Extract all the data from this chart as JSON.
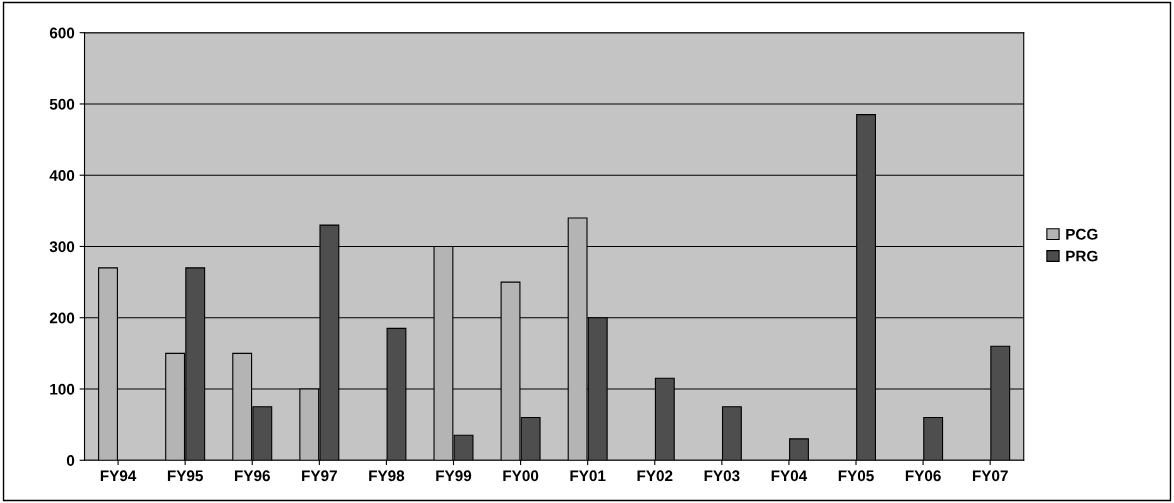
{
  "chart_data": {
    "type": "bar",
    "categories": [
      "FY94",
      "FY95",
      "FY96",
      "FY97",
      "FY98",
      "FY99",
      "FY00",
      "FY01",
      "FY02",
      "FY03",
      "FY04",
      "FY05",
      "FY06",
      "FY07"
    ],
    "series": [
      {
        "name": "PCG",
        "color": "#b4b4b4",
        "values": [
          270,
          150,
          150,
          100,
          null,
          300,
          250,
          340,
          null,
          null,
          null,
          null,
          null,
          null
        ]
      },
      {
        "name": "PRG",
        "color": "#4e4e4e",
        "values": [
          null,
          270,
          75,
          330,
          185,
          35,
          60,
          200,
          115,
          75,
          30,
          485,
          60,
          160
        ]
      }
    ],
    "ylim": [
      0,
      600
    ],
    "yticks": [
      0,
      100,
      200,
      300,
      400,
      500,
      600
    ],
    "grid": "y",
    "legend": "right"
  }
}
